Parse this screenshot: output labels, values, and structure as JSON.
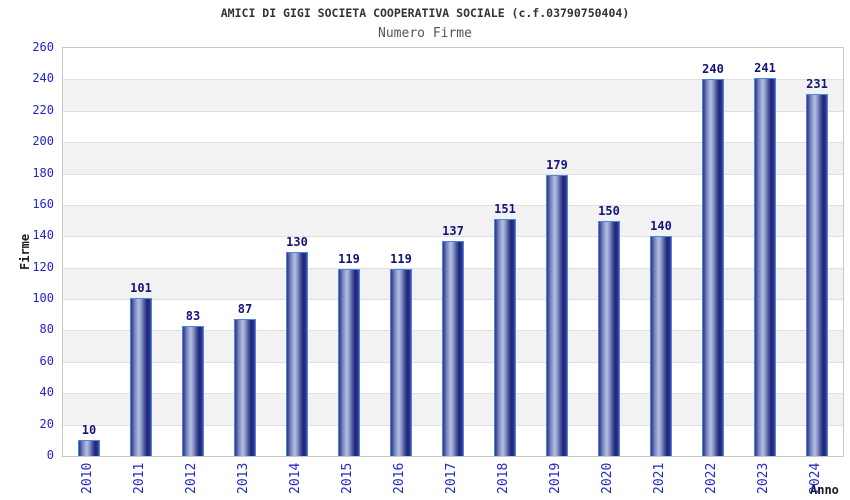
{
  "chart_data": {
    "type": "bar",
    "title": "AMICI DI GIGI SOCIETA COOPERATIVA SOCIALE (c.f.03790750404)",
    "subtitle": "Numero Firme",
    "xlabel": "Anno",
    "ylabel": "Firme",
    "categories": [
      "2010",
      "2011",
      "2012",
      "2013",
      "2014",
      "2015",
      "2016",
      "2017",
      "2018",
      "2019",
      "2020",
      "2021",
      "2022",
      "2023",
      "2024"
    ],
    "values": [
      10,
      101,
      83,
      87,
      130,
      119,
      119,
      137,
      151,
      179,
      150,
      140,
      240,
      241,
      231
    ],
    "ylim": [
      0,
      260
    ],
    "ytick_step": 20,
    "grid": true,
    "legend": "none",
    "colors": {
      "background": "#ffffff",
      "band_light": "#ffffff",
      "band_gray": "#f2f2f2",
      "grid_line": "#e0e0e0",
      "plot_border": "#c8c8c8",
      "bar_border": "#4d86e0",
      "bar_dark": "#2a3590",
      "bar_mid": "#7682ba",
      "bar_light": "#b6c0e2",
      "bar_mid2": "#8e99c8",
      "bar_shade": "#4d59a2",
      "bar_darkest": "#1b2674",
      "bar_edge": "#4a56a0",
      "tick_label": "#2424cc",
      "value_label": "#14147a",
      "title": "#333333",
      "subtitle": "#555555",
      "axis_label": "#1a1a1a"
    }
  }
}
